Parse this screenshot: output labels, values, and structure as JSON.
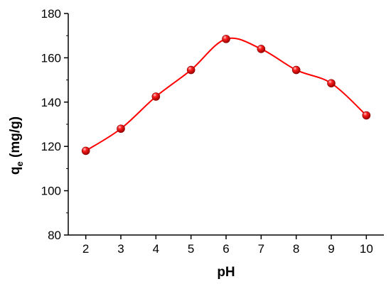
{
  "chart_data": {
    "type": "line",
    "title": "",
    "xlabel": "pH",
    "ylabel": "q",
    "ylabel_subscript": "e",
    "ylabel_suffix": " (mg/g)",
    "xlim": [
      1.5,
      10.5
    ],
    "ylim": [
      80,
      180
    ],
    "xticks": [
      2,
      3,
      4,
      5,
      6,
      7,
      8,
      9,
      10
    ],
    "yticks": [
      80,
      100,
      120,
      140,
      160,
      180
    ],
    "grid": false,
    "series": [
      {
        "x": [
          2,
          3,
          4,
          5,
          6,
          7,
          8,
          9,
          10
        ],
        "y": [
          118,
          128,
          142.5,
          154.5,
          168.5,
          164,
          154.5,
          148.5,
          134
        ],
        "marker": "sphere",
        "color": "#ff0000",
        "fit_line": true
      }
    ]
  }
}
